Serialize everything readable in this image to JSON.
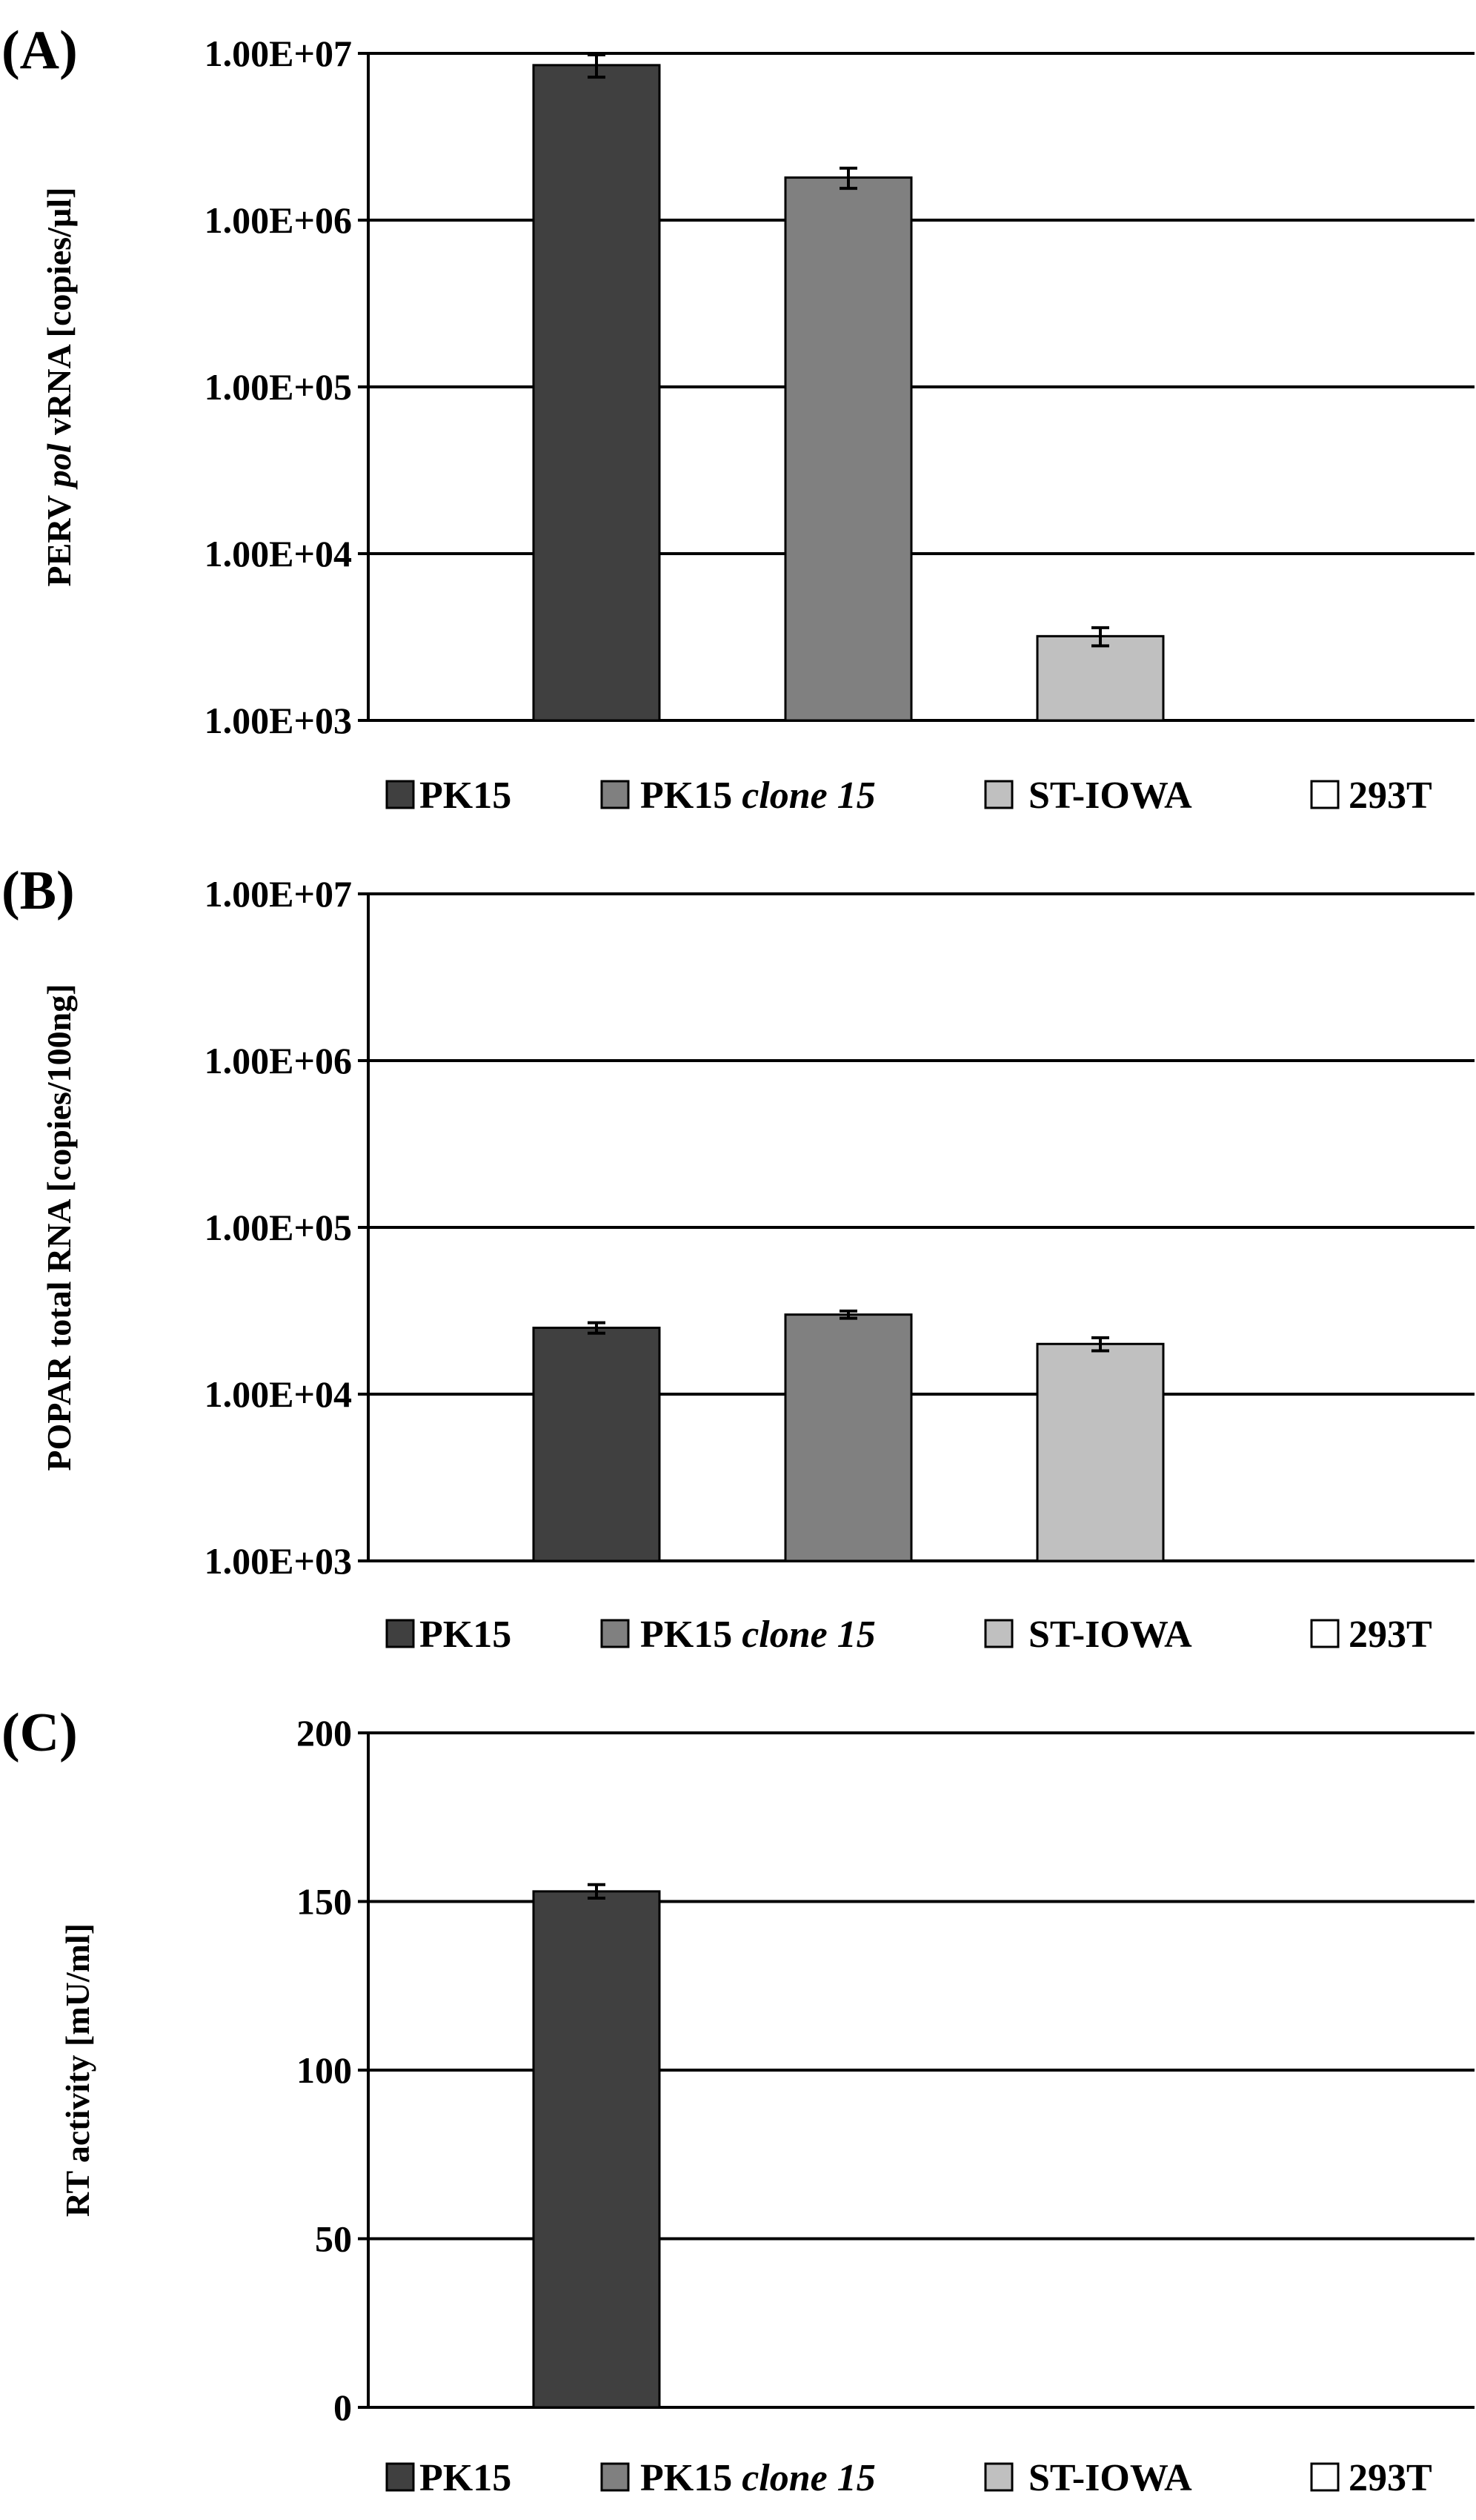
{
  "chart_data": [
    {
      "panel": "(A)",
      "type": "bar",
      "ylabel_parts": [
        "PERV ",
        "pol",
        " vRNA [copies/µl]"
      ],
      "yscale": "log",
      "ylim": [
        1000,
        10000000
      ],
      "ticks": [
        {
          "value": 1000,
          "label": "1.00E+03"
        },
        {
          "value": 10000,
          "label": "1.00E+04"
        },
        {
          "value": 100000,
          "label": "1.00E+05"
        },
        {
          "value": 1000000,
          "label": "1.00E+06"
        },
        {
          "value": 10000000,
          "label": "1.00E+07"
        }
      ],
      "grid": true,
      "legend_position": "bottom",
      "categories": [
        "PK15",
        "PK15 clone 15",
        "ST-IOWA",
        "293T"
      ],
      "values": [
        8500000,
        1800000,
        3200,
        null
      ],
      "errors": [
        1300000,
        250000,
        400,
        null
      ],
      "colors": [
        "#404040",
        "#808080",
        "#c0c0c0",
        "#ffffff"
      ]
    },
    {
      "panel": "(B)",
      "type": "bar",
      "ylabel_parts": [
        "POPAR total RNA [copies/100ng]"
      ],
      "yscale": "log",
      "ylim": [
        1000,
        10000000
      ],
      "ticks": [
        {
          "value": 1000,
          "label": "1.00E+03"
        },
        {
          "value": 10000,
          "label": "1.00E+04"
        },
        {
          "value": 100000,
          "label": "1.00E+05"
        },
        {
          "value": 1000000,
          "label": "1.00E+06"
        },
        {
          "value": 10000000,
          "label": "1.00E+07"
        }
      ],
      "grid": true,
      "legend_position": "bottom",
      "categories": [
        "PK15",
        "PK15 clone 15",
        "ST-IOWA",
        "293T"
      ],
      "values": [
        25000,
        30000,
        20000,
        null
      ],
      "errors": [
        1800,
        1500,
        1800,
        null
      ],
      "colors": [
        "#404040",
        "#808080",
        "#c0c0c0",
        "#ffffff"
      ]
    },
    {
      "panel": "(C)",
      "type": "bar",
      "ylabel_parts": [
        "RT activity [mU/ml]"
      ],
      "yscale": "linear",
      "ylim": [
        0,
        200
      ],
      "ticks": [
        {
          "value": 0,
          "label": "0"
        },
        {
          "value": 50,
          "label": "50"
        },
        {
          "value": 100,
          "label": "100"
        },
        {
          "value": 150,
          "label": "150"
        },
        {
          "value": 200,
          "label": "200"
        }
      ],
      "grid": true,
      "legend_position": "bottom",
      "categories": [
        "PK15",
        "PK15 clone 15",
        "ST-IOWA",
        "293T"
      ],
      "values": [
        153,
        null,
        null,
        null
      ],
      "errors": [
        2,
        null,
        null,
        null
      ],
      "colors": [
        "#404040",
        "#808080",
        "#c0c0c0",
        "#ffffff"
      ]
    }
  ],
  "legend": [
    {
      "parts": [
        "PK15"
      ],
      "italic_index": -1
    },
    {
      "parts": [
        "PK15 ",
        "clone 15"
      ],
      "italic_index": 1
    },
    {
      "parts": [
        "ST-IOWA"
      ],
      "italic_index": -1
    },
    {
      "parts": [
        "293T"
      ],
      "italic_index": -1
    }
  ]
}
